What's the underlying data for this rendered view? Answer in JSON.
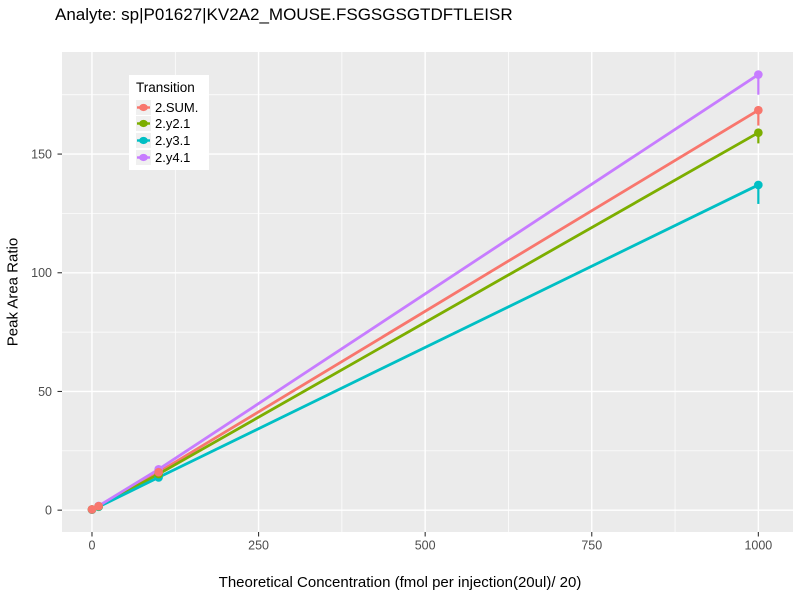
{
  "chart_data": {
    "type": "line",
    "title": "Analyte: sp|P01627|KV2A2_MOUSE.FSGSGSGTDFTLEISR",
    "xlabel": "Theoretical Concentration (fmol per injection(20ul)/ 20)",
    "ylabel": "Peak Area Ratio",
    "legend_title": "Transition",
    "legend_position": "top-left-inside",
    "x": [
      0,
      10,
      100,
      1000
    ],
    "series": [
      {
        "name": "2.SUM.",
        "color": "#F8766D",
        "values": [
          0.3,
          1.7,
          16.0,
          168.5
        ],
        "ci_at_1000": [
          162.0,
          169.5
        ]
      },
      {
        "name": "2.y2.1",
        "color": "#7CAE00",
        "values": [
          0.3,
          1.6,
          15.2,
          159.0
        ],
        "ci_at_1000": [
          154.5,
          160.0
        ]
      },
      {
        "name": "2.y3.1",
        "color": "#00BFC4",
        "values": [
          0.2,
          1.4,
          13.8,
          137.0
        ],
        "ci_at_1000": [
          129.0,
          138.0
        ]
      },
      {
        "name": "2.y4.1",
        "color": "#C77CFF",
        "values": [
          0.3,
          1.8,
          17.2,
          183.5
        ],
        "ci_at_1000": [
          175.0,
          184.5
        ]
      }
    ],
    "xticks": [
      0,
      250,
      500,
      750,
      1000
    ],
    "yticks": [
      0,
      50,
      100,
      150
    ],
    "xlim": [
      -45,
      1052
    ],
    "ylim": [
      -9.2,
      193
    ],
    "grid": true,
    "panel_bg": "#EBEBEB",
    "grid_color": "#FFFFFF",
    "tick_label_color": "#4d4d4d",
    "tick_mark_color": "#333333"
  }
}
